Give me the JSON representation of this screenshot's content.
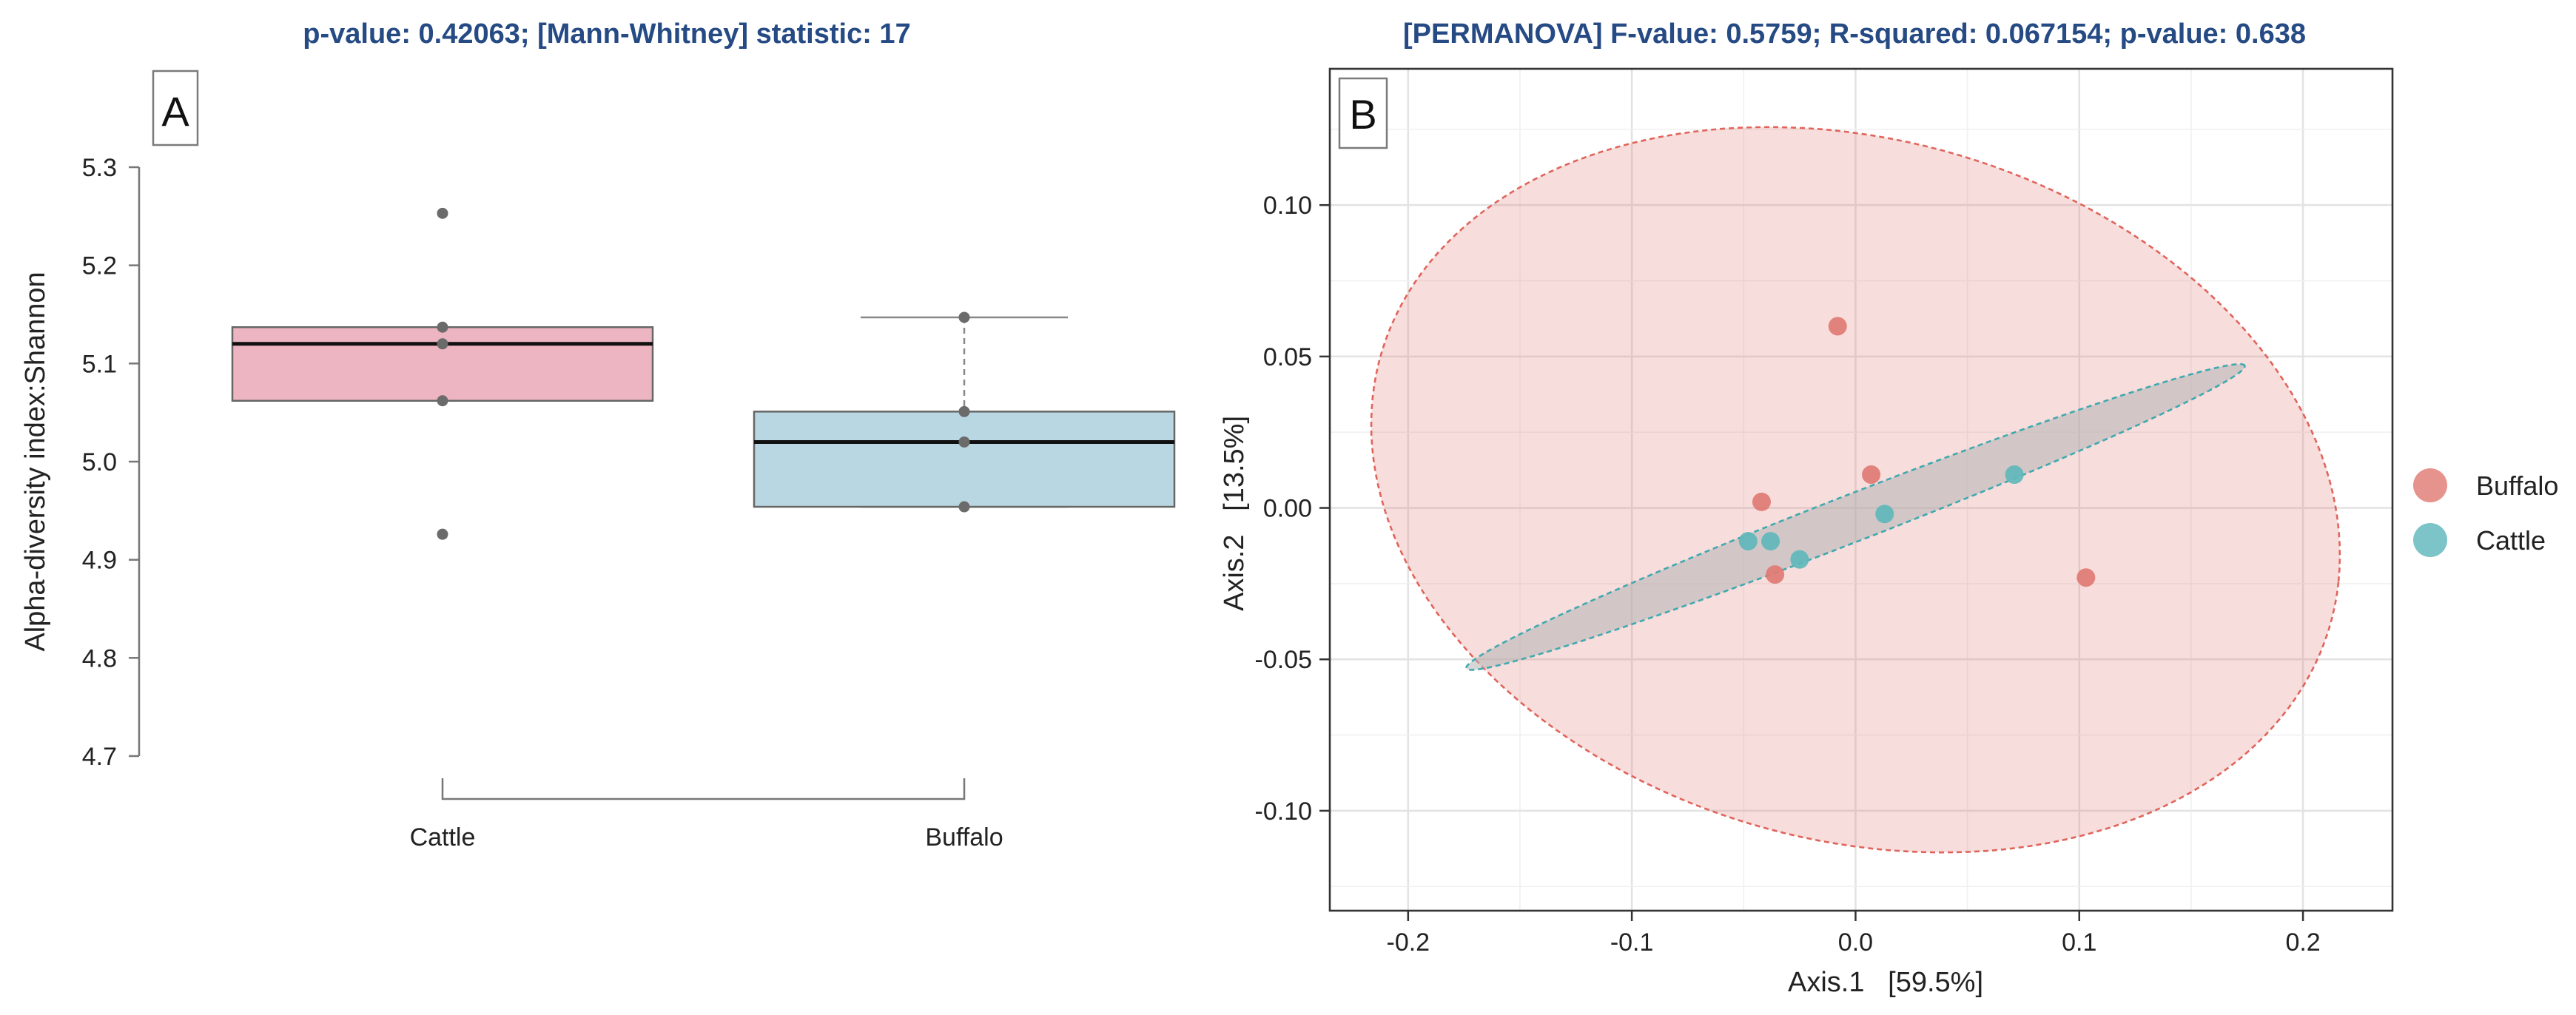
{
  "chart_data": [
    {
      "panel": "A",
      "type": "box",
      "title": "p-value: 0.42063; [Mann-Whitney] statistic: 17",
      "xlabel": "",
      "ylabel": "Alpha-diversity index:Shannon",
      "ylim": [
        4.7,
        5.3
      ],
      "yticks": [
        "4.7",
        "4.8",
        "4.9",
        "5.0",
        "5.1",
        "5.2",
        "5.3"
      ],
      "categories": [
        "Cattle",
        "Buffalo"
      ],
      "boxes": [
        {
          "name": "Cattle",
          "q1": 5.062,
          "median": 5.12,
          "q3": 5.137,
          "whisker_low": 5.062,
          "whisker_high": 5.137,
          "fill": "#EDB5C1",
          "points": [
            5.253,
            5.137,
            5.12,
            5.062,
            4.926
          ]
        },
        {
          "name": "Buffalo",
          "q1": 4.954,
          "median": 5.02,
          "q3": 5.051,
          "whisker_low": 4.954,
          "whisker_high": 5.147,
          "fill": "#B8D7E3",
          "points": [
            5.147,
            5.051,
            5.02,
            4.954
          ]
        }
      ]
    },
    {
      "panel": "B",
      "type": "scatter",
      "title": "[PERMANOVA] F-value: 0.5759; R-squared: 0.067154; p-value: 0.638",
      "xlabel": "Axis.1   [59.5%]",
      "ylabel": "Axis.2   [13.5%]",
      "xlim": [
        -0.235,
        0.24
      ],
      "ylim": [
        -0.133,
        0.145
      ],
      "xticks": [
        -0.2,
        -0.1,
        0.0,
        0.1,
        0.2
      ],
      "xtick_labels": [
        "-0.2",
        "-0.1",
        "0.0",
        "0.1",
        "0.2"
      ],
      "yticks": [
        0.1,
        0.05,
        0.0,
        -0.05,
        -0.1
      ],
      "ytick_labels": [
        "0.10",
        "0.05",
        "0.00",
        "-0.05",
        "-0.10"
      ],
      "series": [
        {
          "name": "Buffalo",
          "color": "#E07A74",
          "points": [
            [
              -0.008,
              0.06
            ],
            [
              -0.042,
              0.002
            ],
            [
              0.007,
              0.011
            ],
            [
              -0.036,
              -0.022
            ],
            [
              0.103,
              -0.023
            ]
          ],
          "ellipse": {
            "cx": 0.0,
            "cy": 0.006,
            "rx": 0.218,
            "ry": 0.117,
            "angle_deg": -8
          }
        },
        {
          "name": "Cattle",
          "color": "#5FB7BB",
          "points": [
            [
              -0.048,
              -0.011
            ],
            [
              -0.038,
              -0.011
            ],
            [
              -0.025,
              -0.017
            ],
            [
              0.013,
              -0.002
            ],
            [
              0.071,
              0.011
            ]
          ],
          "ellipse": {
            "cx": 0.0,
            "cy": -0.003,
            "rx": 0.181,
            "ry": 0.008,
            "angle_deg": 16
          }
        }
      ]
    }
  ],
  "colors": {
    "title": "#254A84",
    "buffalo": "#E07A74",
    "cattle": "#5FB7BB",
    "box_cattle": "#EDB5C1",
    "box_buffalo": "#B8D7E3"
  },
  "legend": {
    "items": [
      "Buffalo",
      "Cattle"
    ]
  }
}
